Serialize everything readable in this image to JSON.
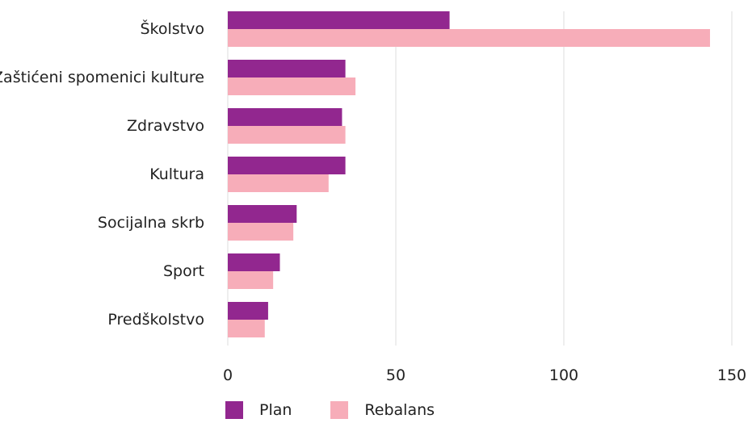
{
  "chart_data": {
    "type": "bar",
    "orientation": "horizontal",
    "categories": [
      "Školstvo",
      "Zaštićeni spomenici kulture",
      "Zdravstvo",
      "Kultura",
      "Socijalna skrb",
      "Sport",
      "Predškolstvo"
    ],
    "series": [
      {
        "name": "Plan",
        "color": "#92278f",
        "values": [
          66,
          35,
          34,
          35,
          20.5,
          15.5,
          12
        ]
      },
      {
        "name": "Rebalans",
        "color": "#f7adb9",
        "values": [
          143.5,
          38,
          35,
          30,
          19.5,
          13.5,
          11
        ]
      }
    ],
    "x_ticks": [
      "0",
      "50",
      "100",
      "150"
    ],
    "xlim": [
      0,
      150
    ],
    "grid": "vertical",
    "legend": "bottom-left"
  }
}
